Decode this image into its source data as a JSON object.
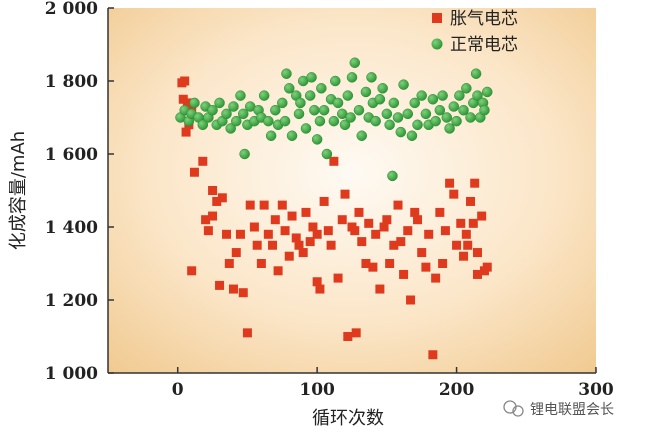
{
  "chart_data": {
    "type": "scatter",
    "xlabel": "循环次数",
    "ylabel": "化成容量/mAh",
    "xlim": [
      -50,
      300
    ],
    "ylim": [
      1000,
      2000
    ],
    "xticks": [
      0,
      100,
      200,
      300
    ],
    "xtick_labels": [
      "0",
      "100",
      "200",
      "300"
    ],
    "yticks": [
      1000,
      1200,
      1400,
      1600,
      1800,
      2000
    ],
    "ytick_labels": [
      "1 000",
      "1 200",
      "1 400",
      "1 600",
      "1 800",
      "2 000"
    ],
    "legend_position": "top-right",
    "background": "radial gradient, light cream center to tan edges",
    "series": [
      {
        "name": "胀气电芯",
        "marker": "square",
        "color": "#e03a1e",
        "points": [
          [
            3,
            1795
          ],
          [
            5,
            1800
          ],
          [
            4,
            1750
          ],
          [
            7,
            1740
          ],
          [
            6,
            1660
          ],
          [
            8,
            1680
          ],
          [
            10,
            1730
          ],
          [
            12,
            1550
          ],
          [
            10,
            1280
          ],
          [
            18,
            1580
          ],
          [
            20,
            1420
          ],
          [
            22,
            1390
          ],
          [
            25,
            1430
          ],
          [
            25,
            1500
          ],
          [
            28,
            1470
          ],
          [
            30,
            1240
          ],
          [
            32,
            1480
          ],
          [
            35,
            1380
          ],
          [
            37,
            1300
          ],
          [
            40,
            1230
          ],
          [
            42,
            1330
          ],
          [
            45,
            1380
          ],
          [
            47,
            1220
          ],
          [
            50,
            1110
          ],
          [
            52,
            1460
          ],
          [
            55,
            1400
          ],
          [
            57,
            1350
          ],
          [
            60,
            1300
          ],
          [
            62,
            1460
          ],
          [
            65,
            1380
          ],
          [
            68,
            1350
          ],
          [
            70,
            1420
          ],
          [
            72,
            1280
          ],
          [
            75,
            1460
          ],
          [
            77,
            1390
          ],
          [
            80,
            1320
          ],
          [
            82,
            1430
          ],
          [
            85,
            1370
          ],
          [
            87,
            1350
          ],
          [
            90,
            1330
          ],
          [
            92,
            1440
          ],
          [
            95,
            1360
          ],
          [
            97,
            1400
          ],
          [
            100,
            1380
          ],
          [
            100,
            1250
          ],
          [
            102,
            1230
          ],
          [
            105,
            1470
          ],
          [
            108,
            1390
          ],
          [
            110,
            1350
          ],
          [
            112,
            1580
          ],
          [
            115,
            1260
          ],
          [
            118,
            1420
          ],
          [
            120,
            1490
          ],
          [
            122,
            1100
          ],
          [
            125,
            1400
          ],
          [
            127,
            1390
          ],
          [
            128,
            1110
          ],
          [
            130,
            1440
          ],
          [
            132,
            1360
          ],
          [
            135,
            1300
          ],
          [
            137,
            1410
          ],
          [
            140,
            1290
          ],
          [
            142,
            1380
          ],
          [
            145,
            1230
          ],
          [
            148,
            1400
          ],
          [
            150,
            1420
          ],
          [
            152,
            1300
          ],
          [
            155,
            1350
          ],
          [
            158,
            1460
          ],
          [
            160,
            1360
          ],
          [
            162,
            1270
          ],
          [
            165,
            1390
          ],
          [
            167,
            1200
          ],
          [
            170,
            1440
          ],
          [
            172,
            1420
          ],
          [
            175,
            1330
          ],
          [
            178,
            1290
          ],
          [
            180,
            1380
          ],
          [
            183,
            1050
          ],
          [
            185,
            1260
          ],
          [
            188,
            1440
          ],
          [
            190,
            1300
          ],
          [
            192,
            1390
          ],
          [
            195,
            1520
          ],
          [
            198,
            1490
          ],
          [
            200,
            1350
          ],
          [
            203,
            1410
          ],
          [
            205,
            1320
          ],
          [
            208,
            1350
          ],
          [
            210,
            1470
          ],
          [
            213,
            1520
          ],
          [
            215,
            1330
          ],
          [
            218,
            1430
          ],
          [
            220,
            1280
          ],
          [
            222,
            1290
          ],
          [
            215,
            1270
          ],
          [
            212,
            1410
          ],
          [
            207,
            1380
          ]
        ]
      },
      {
        "name": "正常电芯",
        "marker": "circle",
        "color": "#2f9e37",
        "points": [
          [
            2,
            1700
          ],
          [
            5,
            1720
          ],
          [
            8,
            1690
          ],
          [
            10,
            1710
          ],
          [
            12,
            1740
          ],
          [
            15,
            1700
          ],
          [
            18,
            1680
          ],
          [
            20,
            1730
          ],
          [
            22,
            1700
          ],
          [
            25,
            1720
          ],
          [
            28,
            1680
          ],
          [
            30,
            1740
          ],
          [
            32,
            1690
          ],
          [
            35,
            1710
          ],
          [
            38,
            1670
          ],
          [
            40,
            1730
          ],
          [
            42,
            1690
          ],
          [
            45,
            1760
          ],
          [
            47,
            1710
          ],
          [
            48,
            1600
          ],
          [
            50,
            1680
          ],
          [
            52,
            1730
          ],
          [
            55,
            1690
          ],
          [
            58,
            1720
          ],
          [
            60,
            1700
          ],
          [
            62,
            1760
          ],
          [
            65,
            1690
          ],
          [
            67,
            1650
          ],
          [
            70,
            1720
          ],
          [
            72,
            1680
          ],
          [
            75,
            1740
          ],
          [
            77,
            1690
          ],
          [
            78,
            1820
          ],
          [
            80,
            1780
          ],
          [
            82,
            1650
          ],
          [
            85,
            1760
          ],
          [
            87,
            1710
          ],
          [
            88,
            1740
          ],
          [
            90,
            1800
          ],
          [
            92,
            1670
          ],
          [
            95,
            1760
          ],
          [
            96,
            1810
          ],
          [
            98,
            1720
          ],
          [
            100,
            1640
          ],
          [
            102,
            1690
          ],
          [
            103,
            1780
          ],
          [
            105,
            1720
          ],
          [
            107,
            1600
          ],
          [
            110,
            1750
          ],
          [
            112,
            1690
          ],
          [
            113,
            1800
          ],
          [
            115,
            1740
          ],
          [
            118,
            1710
          ],
          [
            120,
            1680
          ],
          [
            122,
            1760
          ],
          [
            124,
            1700
          ],
          [
            125,
            1810
          ],
          [
            127,
            1850
          ],
          [
            130,
            1720
          ],
          [
            132,
            1650
          ],
          [
            135,
            1770
          ],
          [
            137,
            1700
          ],
          [
            139,
            1810
          ],
          [
            140,
            1740
          ],
          [
            142,
            1690
          ],
          [
            145,
            1750
          ],
          [
            147,
            1780
          ],
          [
            150,
            1710
          ],
          [
            152,
            1680
          ],
          [
            154,
            1540
          ],
          [
            155,
            1740
          ],
          [
            158,
            1700
          ],
          [
            160,
            1660
          ],
          [
            162,
            1790
          ],
          [
            165,
            1710
          ],
          [
            168,
            1650
          ],
          [
            170,
            1740
          ],
          [
            172,
            1680
          ],
          [
            175,
            1760
          ],
          [
            178,
            1710
          ],
          [
            180,
            1680
          ],
          [
            183,
            1750
          ],
          [
            185,
            1690
          ],
          [
            188,
            1720
          ],
          [
            190,
            1760
          ],
          [
            193,
            1700
          ],
          [
            195,
            1670
          ],
          [
            198,
            1730
          ],
          [
            200,
            1690
          ],
          [
            202,
            1760
          ],
          [
            205,
            1720
          ],
          [
            207,
            1780
          ],
          [
            210,
            1700
          ],
          [
            212,
            1740
          ],
          [
            214,
            1820
          ],
          [
            215,
            1760
          ],
          [
            217,
            1700
          ],
          [
            219,
            1740
          ],
          [
            220,
            1720
          ],
          [
            222,
            1770
          ]
        ]
      }
    ]
  },
  "watermark": {
    "text": "锂电联盟会长"
  }
}
